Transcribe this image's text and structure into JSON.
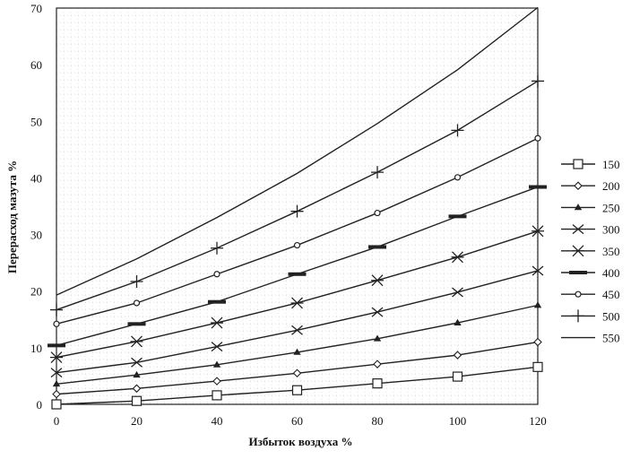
{
  "chart_data": {
    "type": "line",
    "title": "",
    "xlabel": "Избыток воздуха %",
    "ylabel": "Перерасход мазута %",
    "xlim": [
      0,
      120
    ],
    "ylim": [
      0,
      70
    ],
    "x_ticks": [
      0,
      20,
      40,
      60,
      80,
      100,
      120
    ],
    "y_ticks": [
      0,
      10,
      20,
      30,
      40,
      50,
      60,
      70
    ],
    "grid": true,
    "legend_position": "right",
    "x": [
      0,
      20,
      40,
      60,
      80,
      100,
      120
    ],
    "series": [
      {
        "name": "150",
        "marker": "square",
        "values": [
          0.0,
          0.6,
          1.6,
          2.5,
          3.7,
          4.9,
          6.6
        ]
      },
      {
        "name": "200",
        "marker": "diamond",
        "values": [
          1.8,
          2.8,
          4.1,
          5.5,
          7.1,
          8.7,
          11.0
        ]
      },
      {
        "name": "250",
        "marker": "triangle",
        "values": [
          3.6,
          5.2,
          7.0,
          9.2,
          11.6,
          14.4,
          17.5
        ]
      },
      {
        "name": "300",
        "marker": "x",
        "values": [
          5.6,
          7.4,
          10.2,
          13.1,
          16.3,
          19.8,
          23.6
        ]
      },
      {
        "name": "350",
        "marker": "asterisk",
        "values": [
          8.3,
          11.1,
          14.4,
          17.9,
          21.9,
          26.0,
          30.6
        ]
      },
      {
        "name": "400",
        "marker": "dash",
        "values": [
          10.4,
          14.2,
          18.1,
          23.0,
          27.8,
          33.2,
          38.4
        ]
      },
      {
        "name": "450",
        "marker": "circle",
        "values": [
          14.2,
          17.9,
          23.0,
          28.1,
          33.8,
          40.1,
          47.0
        ]
      },
      {
        "name": "500",
        "marker": "plus",
        "values": [
          16.7,
          21.7,
          27.6,
          34.1,
          41.0,
          48.4,
          57.1
        ]
      },
      {
        "name": "550",
        "marker": "none",
        "values": [
          19.3,
          25.7,
          33.0,
          40.8,
          49.6,
          59.1,
          70.1
        ]
      }
    ]
  }
}
